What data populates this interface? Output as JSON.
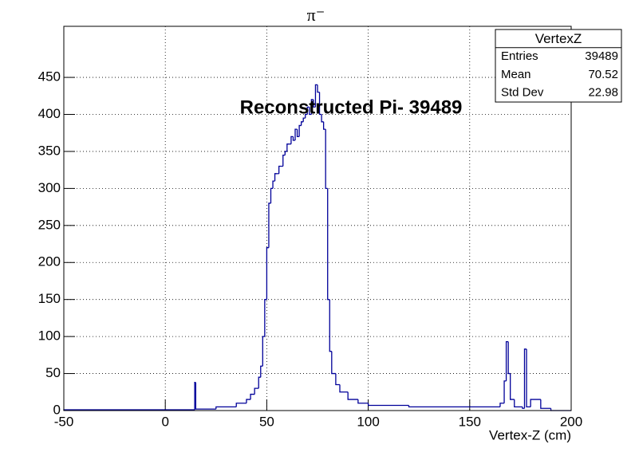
{
  "chart_data": {
    "type": "histogram",
    "title": "π⁻",
    "annotation": "Reconstructed Pi- 39489",
    "x_label": "Vertex-Z (cm)",
    "color": "#000099",
    "grid": true,
    "xlim": [
      -50,
      200
    ],
    "ylim": [
      0,
      519
    ],
    "xticks": [
      -50,
      0,
      50,
      100,
      150,
      200
    ],
    "yticks": [
      0,
      50,
      100,
      150,
      200,
      250,
      300,
      350,
      400,
      450
    ],
    "bins": [
      -50,
      14.5,
      15,
      25,
      35,
      40,
      42,
      44,
      46,
      47,
      48,
      49,
      50,
      51,
      52,
      53,
      54,
      55,
      56,
      57,
      58,
      59,
      60,
      61,
      62,
      63,
      64,
      65,
      66,
      67,
      68,
      69,
      70,
      71,
      72,
      73,
      74,
      75,
      76,
      77,
      78,
      79,
      80,
      81,
      82,
      84,
      86,
      90,
      95,
      100,
      120,
      150,
      165,
      167,
      168,
      169,
      170,
      172,
      176,
      177,
      178,
      180,
      185,
      190,
      200
    ],
    "counts": [
      1,
      38,
      2,
      5,
      10,
      15,
      22,
      30,
      45,
      60,
      100,
      150,
      220,
      280,
      300,
      310,
      320,
      320,
      330,
      330,
      345,
      350,
      360,
      360,
      370,
      365,
      380,
      370,
      385,
      390,
      395,
      400,
      410,
      400,
      420,
      410,
      440,
      430,
      400,
      390,
      380,
      300,
      150,
      80,
      50,
      35,
      25,
      15,
      10,
      7,
      5,
      5,
      10,
      40,
      93,
      50,
      15,
      5,
      3,
      83,
      5,
      15,
      3,
      0
    ],
    "stats": {
      "title": "VertexZ",
      "rows": [
        {
          "label": "Entries",
          "value": 39489
        },
        {
          "label": "Mean",
          "value": 70.52
        },
        {
          "label": "Std Dev",
          "value": 22.98
        }
      ]
    }
  }
}
